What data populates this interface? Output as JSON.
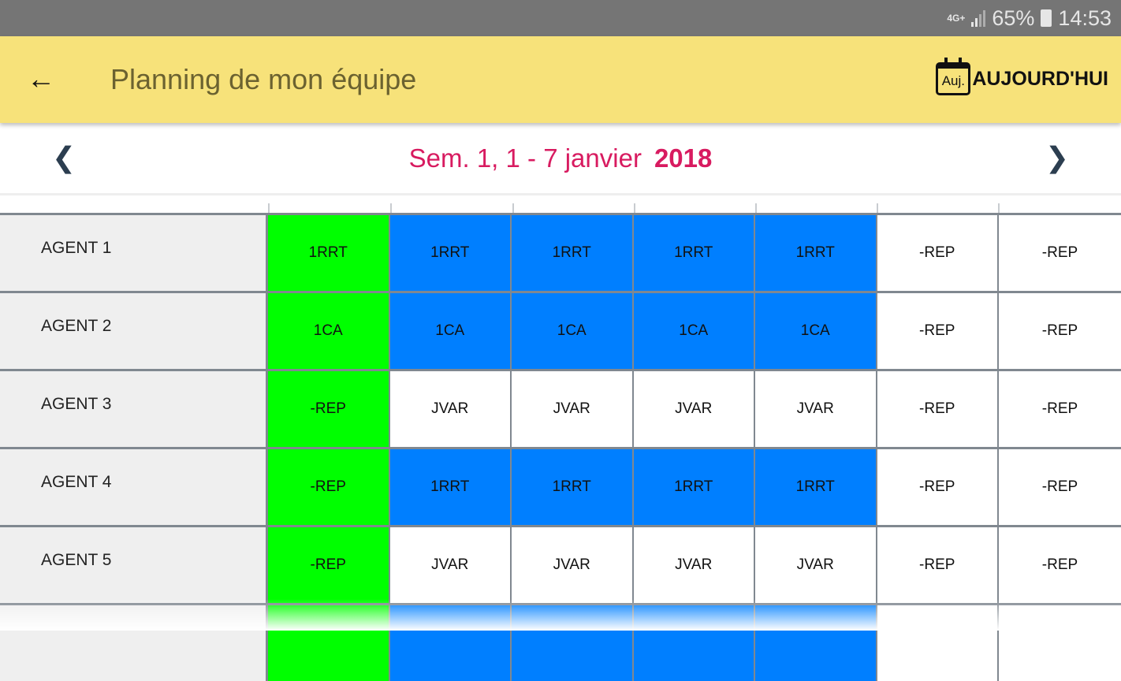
{
  "status_bar": {
    "network": "4G+",
    "battery": "65%",
    "time": "14:53"
  },
  "app_bar": {
    "title": "Planning de mon équipe",
    "today_icon_text": "Auj.",
    "today_label": "AUJOURD'HUI"
  },
  "week_nav": {
    "week": "Sem. 1, 1 - 7 janvier",
    "year": "2018"
  },
  "colors": {
    "green": "#00ff00",
    "blue": "#007fff",
    "white": "#ffffff",
    "appbar": "#f7e27a",
    "accent": "#d81b60"
  },
  "rows": [
    {
      "agent": "AGENT 1",
      "cells": [
        {
          "v": "1RRT",
          "c": "g"
        },
        {
          "v": "1RRT",
          "c": "b"
        },
        {
          "v": "1RRT",
          "c": "b"
        },
        {
          "v": "1RRT",
          "c": "b"
        },
        {
          "v": "1RRT",
          "c": "b"
        },
        {
          "v": "-REP",
          "c": "w"
        },
        {
          "v": "-REP",
          "c": "w"
        }
      ]
    },
    {
      "agent": "AGENT 2",
      "cells": [
        {
          "v": "1CA",
          "c": "g"
        },
        {
          "v": "1CA",
          "c": "b"
        },
        {
          "v": "1CA",
          "c": "b"
        },
        {
          "v": "1CA",
          "c": "b"
        },
        {
          "v": "1CA",
          "c": "b"
        },
        {
          "v": "-REP",
          "c": "w"
        },
        {
          "v": "-REP",
          "c": "w"
        }
      ]
    },
    {
      "agent": "AGENT 3",
      "cells": [
        {
          "v": "-REP",
          "c": "g"
        },
        {
          "v": "JVAR",
          "c": "w"
        },
        {
          "v": "JVAR",
          "c": "w"
        },
        {
          "v": "JVAR",
          "c": "w"
        },
        {
          "v": "JVAR",
          "c": "w"
        },
        {
          "v": "-REP",
          "c": "w"
        },
        {
          "v": "-REP",
          "c": "w"
        }
      ]
    },
    {
      "agent": "AGENT 4",
      "cells": [
        {
          "v": "-REP",
          "c": "g"
        },
        {
          "v": "1RRT",
          "c": "b"
        },
        {
          "v": "1RRT",
          "c": "b"
        },
        {
          "v": "1RRT",
          "c": "b"
        },
        {
          "v": "1RRT",
          "c": "b"
        },
        {
          "v": "-REP",
          "c": "w"
        },
        {
          "v": "-REP",
          "c": "w"
        }
      ]
    },
    {
      "agent": "AGENT 5",
      "cells": [
        {
          "v": "-REP",
          "c": "g"
        },
        {
          "v": "JVAR",
          "c": "w"
        },
        {
          "v": "JVAR",
          "c": "w"
        },
        {
          "v": "JVAR",
          "c": "w"
        },
        {
          "v": "JVAR",
          "c": "w"
        },
        {
          "v": "-REP",
          "c": "w"
        },
        {
          "v": "-REP",
          "c": "w"
        }
      ]
    },
    {
      "agent": "",
      "cells": [
        {
          "v": "",
          "c": "g"
        },
        {
          "v": "",
          "c": "b"
        },
        {
          "v": "",
          "c": "b"
        },
        {
          "v": "",
          "c": "b"
        },
        {
          "v": "",
          "c": "b"
        },
        {
          "v": "",
          "c": "w"
        },
        {
          "v": "",
          "c": "w"
        }
      ]
    }
  ]
}
